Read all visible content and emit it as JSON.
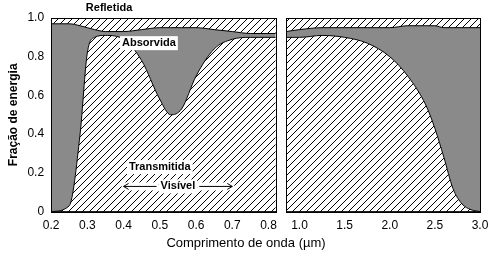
{
  "chart_data": [
    {
      "type": "area",
      "stacked": true,
      "grid": false,
      "ylabel": "Fração de energia",
      "xlabel": "Comprimento de onda (µm)",
      "xlim": [
        0.2,
        0.82
      ],
      "xticks": [
        0.2,
        0.3,
        0.4,
        0.5,
        0.6,
        0.7,
        0.8
      ],
      "ylim": [
        0,
        1
      ],
      "yticks": [
        0,
        0.2,
        0.4,
        0.6,
        0.8,
        {
          "value": 1,
          "label": "1.0"
        }
      ],
      "x": [
        0.2,
        0.25,
        0.28,
        0.3,
        0.32,
        0.35,
        0.4,
        0.45,
        0.5,
        0.53,
        0.56,
        0.6,
        0.65,
        0.7,
        0.75,
        0.82
      ],
      "series": [
        {
          "name": "Transmitida",
          "color": "#000000",
          "values": [
            0,
            0.03,
            0.4,
            0.82,
            0.9,
            0.91,
            0.89,
            0.78,
            0.58,
            0.5,
            0.53,
            0.7,
            0.84,
            0.89,
            0.9,
            0.9
          ]
        },
        {
          "name": "Absorvida",
          "color": "#8a8a8a",
          "values": [
            0.97,
            0.94,
            0.56,
            0.13,
            0.04,
            0.02,
            0.04,
            0.16,
            0.37,
            0.45,
            0.42,
            0.25,
            0.1,
            0.04,
            0.02,
            0.02
          ]
        },
        {
          "name": "Refletida",
          "color": "#000000",
          "values": [
            0.03,
            0.03,
            0.04,
            0.05,
            0.06,
            0.07,
            0.07,
            0.06,
            0.05,
            0.05,
            0.05,
            0.05,
            0.06,
            0.07,
            0.08,
            0.08
          ]
        }
      ],
      "annotations": [
        {
          "text": "Refletida",
          "x": 0.36,
          "y": 1.05
        },
        {
          "text": "Absorvida",
          "x": 0.47,
          "y": 0.87
        },
        {
          "text": "Transmitida",
          "x": 0.5,
          "y": 0.23
        },
        {
          "text": "Visível",
          "x": 0.55,
          "y": 0.13,
          "x_range": [
            0.4,
            0.7
          ]
        }
      ]
    },
    {
      "type": "area",
      "stacked": true,
      "grid": false,
      "tick_labels": "x",
      "xlim": [
        0.85,
        3.0
      ],
      "xticks": [
        {
          "value": 1,
          "label": "1.0"
        },
        1.5,
        {
          "value": 2,
          "label": "2.0"
        },
        2.5,
        {
          "value": 3,
          "label": "3.0"
        }
      ],
      "ylim": [
        0,
        1
      ],
      "yticks": [
        0,
        0.2,
        0.4,
        0.6,
        0.8,
        {
          "value": 1,
          "label": "1.0"
        }
      ],
      "x": [
        0.85,
        1.0,
        1.25,
        1.5,
        1.75,
        2.0,
        2.2,
        2.4,
        2.5,
        2.6,
        2.7,
        2.8,
        2.9,
        3.0
      ],
      "series": [
        {
          "name": "Transmitida",
          "color": "#000000",
          "values": [
            0.9,
            0.9,
            0.91,
            0.9,
            0.87,
            0.8,
            0.7,
            0.55,
            0.43,
            0.28,
            0.12,
            0.04,
            0.01,
            0
          ]
        },
        {
          "name": "Absorvida",
          "color": "#8a8a8a",
          "values": [
            0.03,
            0.04,
            0.04,
            0.05,
            0.08,
            0.15,
            0.26,
            0.41,
            0.53,
            0.67,
            0.83,
            0.91,
            0.94,
            0.95
          ]
        },
        {
          "name": "Refletida",
          "color": "#000000",
          "values": [
            0.07,
            0.06,
            0.05,
            0.05,
            0.05,
            0.05,
            0.04,
            0.04,
            0.04,
            0.05,
            0.05,
            0.05,
            0.05,
            0.05
          ]
        }
      ]
    }
  ]
}
